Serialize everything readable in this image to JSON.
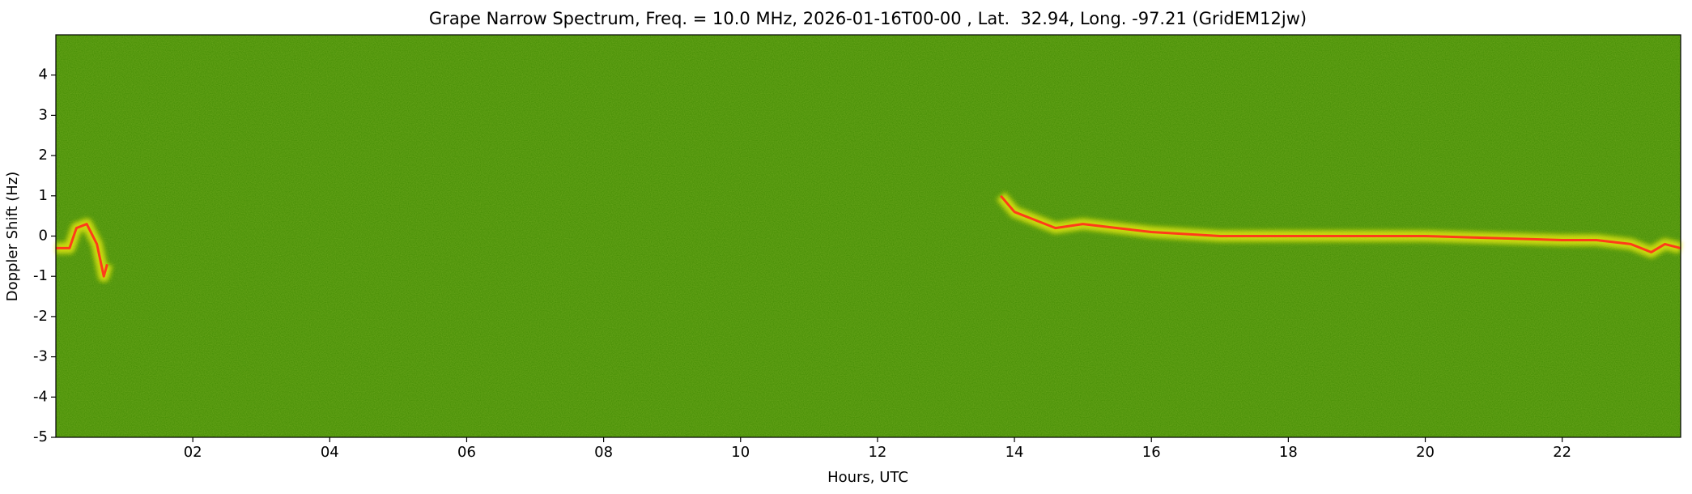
{
  "chart_data": {
    "type": "spectrogram",
    "title": "Grape Narrow Spectrum, Freq. = 10.0 MHz, 2026-01-16T00-00 , Lat.  32.94, Long. -97.21 (GridEM12jw)",
    "x_label": "Hours, UTC",
    "y_label": "Doppler Shift (Hz)",
    "x": [
      0.0,
      0.2,
      0.3,
      0.45,
      0.6,
      0.7,
      0.75,
      null,
      13.8,
      14.0,
      14.3,
      14.6,
      15.0,
      15.5,
      16.0,
      17.0,
      18.0,
      19.0,
      20.0,
      21.0,
      22.0,
      22.5,
      23.0,
      23.3,
      23.5,
      23.73
    ],
    "values": [
      -0.3,
      -0.3,
      0.2,
      0.3,
      -0.2,
      -1.0,
      -0.7,
      null,
      1.0,
      0.6,
      0.4,
      0.2,
      0.3,
      0.2,
      0.1,
      0.0,
      0.0,
      0.0,
      0.0,
      -0.05,
      -0.1,
      -0.1,
      -0.2,
      -0.4,
      -0.2,
      -0.3
    ],
    "color": "#ff3b1a",
    "background_color": "#3f8a00",
    "xlim": [
      0,
      23.73
    ],
    "ylim": [
      -5,
      5
    ],
    "xticks": [
      {
        "value": 2,
        "label": "02"
      },
      {
        "value": 4,
        "label": "04"
      },
      {
        "value": 6,
        "label": "06"
      },
      {
        "value": 8,
        "label": "08"
      },
      10,
      12,
      14,
      16,
      18,
      20,
      22
    ],
    "yticks": [
      -5,
      -4,
      -3,
      -2,
      -1,
      0,
      1,
      2,
      3,
      4
    ]
  }
}
